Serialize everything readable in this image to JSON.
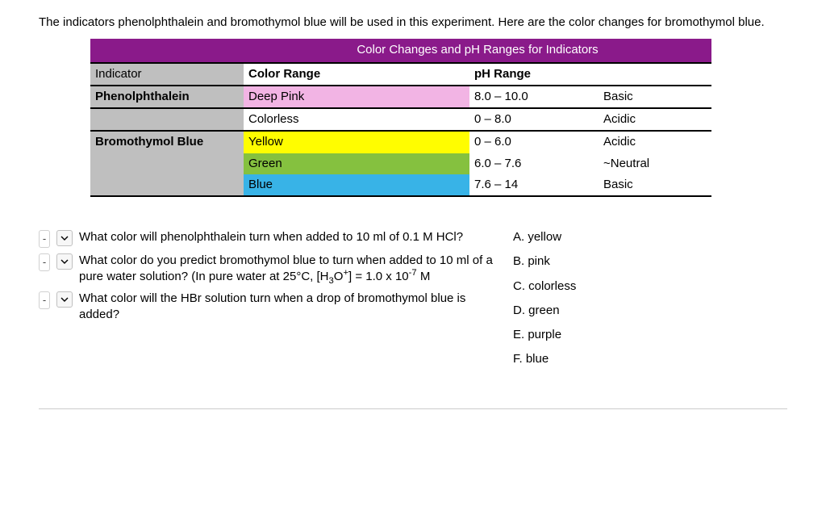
{
  "intro": "The indicators phenolphthalein and bromothymol blue will be used in this experiment. Here are the color changes for bromothymol blue.",
  "table": {
    "title": "Color Changes and pH Ranges for Indicators",
    "title_bg": "#8a1a8a",
    "title_color": "#ffffff",
    "ind_col_bg": "#bfbfbf",
    "header": {
      "indicator": "Indicator",
      "color_range": "Color Range",
      "ph_range": "pH Range"
    },
    "rows": [
      {
        "indicator": "Phenolphthalein",
        "color_name": "Deep Pink",
        "color_bg": "#f2b4e4",
        "ph": "8.0 – 10.0",
        "ab": "Basic",
        "row_border": true
      },
      {
        "indicator": "",
        "color_name": "Colorless",
        "color_bg": "#ffffff",
        "ph": "0 – 8.0",
        "ab": "Acidic",
        "row_border": true
      },
      {
        "indicator": "Bromothymol Blue",
        "color_name": "Yellow",
        "color_bg": "#fffd00",
        "ph": "0 – 6.0",
        "ab": "Acidic",
        "row_border": false
      },
      {
        "indicator": "",
        "color_name": "Green",
        "color_bg": "#85c13f",
        "ph": "6.0 – 7.6",
        "ab": "~Neutral",
        "row_border": false
      },
      {
        "indicator": "",
        "color_name": "Blue",
        "color_bg": "#38b3e7",
        "ph": "7.6 – 14",
        "ab": "Basic",
        "row_border": true
      }
    ]
  },
  "questions": [
    {
      "text_html": "What color will phenolphthalein turn when added to 10 ml of 0.1 M HCl?"
    },
    {
      "text_html": "What color do you predict bromothymol blue to turn when added to 10 ml of a pure water solution? (In pure water at 25°C, [H<sub>3</sub>O<sup>+</sup>] = 1.0 x 10<sup>-7</sup> M"
    },
    {
      "text_html": "What color will the HBr solution turn when a drop of bromothymol blue is added?"
    }
  ],
  "answers": [
    "A. yellow",
    "B. pink",
    "C. colorless",
    "D. green",
    "E. purple",
    "F. blue"
  ]
}
